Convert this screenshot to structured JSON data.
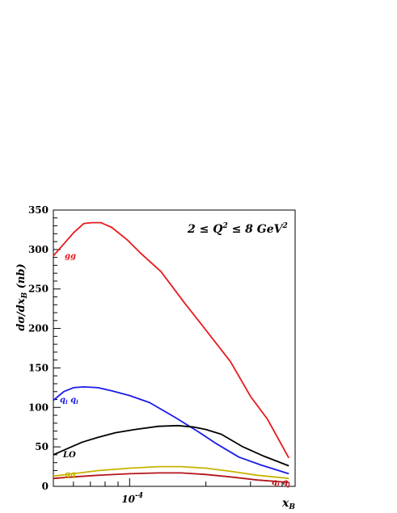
{
  "chart_data": {
    "type": "line",
    "title": "",
    "annotation": {
      "prefix": "2 ≤ ",
      "q": "Q",
      "sup1": "2",
      "mid": " ≤ 8 GeV",
      "sup2": "2"
    },
    "ylabel": "dσ/dx",
    "ylabel_sub": "B",
    "ylabel_unit": " (nb)",
    "xlabel": "x",
    "xlabel_sub": "B",
    "x_scale": "log",
    "xlim": [
      5e-05,
      0.00045
    ],
    "ylim": [
      0,
      350
    ],
    "y_ticks": [
      "0",
      "50",
      "100",
      "150",
      "200",
      "250",
      "300",
      "350"
    ],
    "x_tick_labels": [
      {
        "base": "10",
        "exp": "-4"
      }
    ],
    "x_minor_ticks": [
      5e-05,
      6e-05,
      7e-05,
      8e-05,
      9e-05,
      0.0001,
      0.0002,
      0.0003,
      0.0004
    ],
    "grid": false,
    "series": [
      {
        "name": "gg",
        "color": "#e8191a",
        "x": [
          5e-05,
          6e-05,
          6.6e-05,
          7.1e-05,
          7.7e-05,
          8.5e-05,
          9.8e-05,
          0.00011,
          0.000133,
          0.000165,
          0.0002,
          0.00025,
          0.0003,
          0.00035,
          0.000425
        ],
        "y": [
          292,
          321,
          333,
          334,
          334,
          328,
          312,
          296,
          272,
          232,
          198,
          158,
          114,
          85,
          36
        ]
      },
      {
        "name": "q",
        "name_sub": "i",
        "name_mid": " q",
        "name_sub2": "i",
        "color": "#1a1ae8",
        "x": [
          5e-05,
          5.5e-05,
          6e-05,
          6.6e-05,
          7.5e-05,
          8.5e-05,
          0.0001,
          0.00012,
          0.00015,
          0.000185,
          0.00022,
          0.00027,
          0.00033,
          0.000425
        ],
        "y": [
          109,
          120,
          125,
          126,
          125,
          121,
          115,
          106,
          88,
          70,
          54,
          37,
          27,
          16
        ]
      },
      {
        "name": "LO",
        "color": "#000000",
        "x": [
          5e-05,
          5.7e-05,
          6.5e-05,
          7.5e-05,
          8.8e-05,
          0.000105,
          0.00013,
          0.000155,
          0.00018,
          0.0002,
          0.00023,
          0.00028,
          0.00034,
          0.000425
        ],
        "y": [
          40,
          48,
          56,
          62,
          68,
          72,
          76,
          77,
          75,
          72,
          66,
          50,
          38,
          26
        ]
      },
      {
        "name": "gq",
        "color": "#c8b400",
        "x": [
          5e-05,
          6e-05,
          7.5e-05,
          0.0001,
          0.00013,
          0.00016,
          0.0002,
          0.00025,
          0.00032,
          0.000425
        ],
        "y": [
          13,
          16,
          20,
          23,
          25,
          25,
          23,
          19,
          14,
          10
        ]
      },
      {
        "name": "q",
        "name_sub": "i",
        "name_mid": " q",
        "name_sub2": "j",
        "color": "#b4141a",
        "x": [
          5e-05,
          6e-05,
          7.5e-05,
          0.0001,
          0.00013,
          0.00016,
          0.0002,
          0.00025,
          0.00032,
          0.000425
        ],
        "y": [
          10,
          12,
          14,
          16,
          17,
          17,
          15,
          12,
          8,
          5
        ]
      }
    ]
  }
}
